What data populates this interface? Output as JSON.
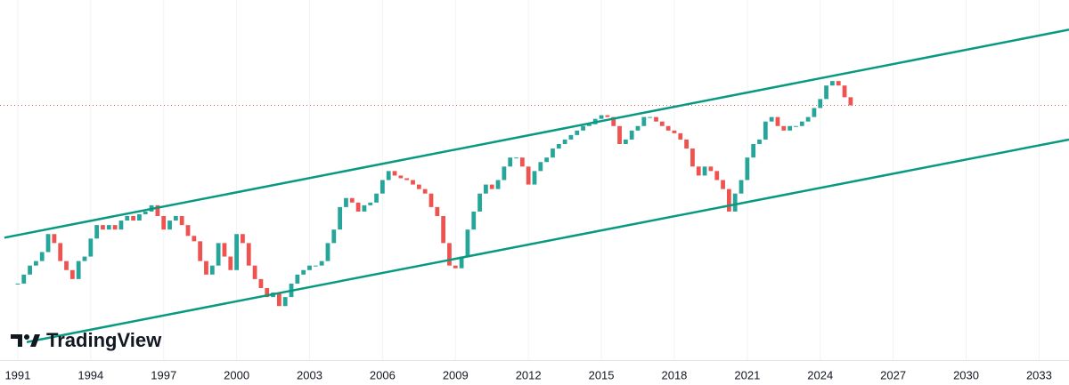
{
  "chart_data": {
    "type": "candlestick",
    "x": [
      1991,
      1991.25,
      1991.5,
      1991.75,
      1992,
      1992.25,
      1992.5,
      1992.75,
      1993,
      1993.25,
      1993.5,
      1993.75,
      1994,
      1994.25,
      1994.5,
      1994.75,
      1995,
      1995.25,
      1995.5,
      1995.75,
      1996,
      1996.25,
      1996.5,
      1996.75,
      1997,
      1997.25,
      1997.5,
      1997.75,
      1998,
      1998.25,
      1998.5,
      1998.75,
      1999,
      1999.25,
      1999.5,
      1999.75,
      2000,
      2000.25,
      2000.5,
      2000.75,
      2001,
      2001.25,
      2001.5,
      2001.75,
      2002,
      2002.25,
      2002.5,
      2002.75,
      2003,
      2003.25,
      2003.5,
      2003.75,
      2004,
      2004.25,
      2004.5,
      2004.75,
      2005,
      2005.25,
      2005.5,
      2005.75,
      2006,
      2006.25,
      2006.5,
      2006.75,
      2007,
      2007.25,
      2007.5,
      2007.75,
      2008,
      2008.25,
      2008.5,
      2008.75,
      2009,
      2009.25,
      2009.5,
      2009.75,
      2010,
      2010.25,
      2010.5,
      2010.75,
      2011,
      2011.25,
      2011.5,
      2011.75,
      2012,
      2012.25,
      2012.5,
      2012.75,
      2013,
      2013.25,
      2013.5,
      2013.75,
      2014,
      2014.25,
      2014.5,
      2014.75,
      2015,
      2015.25,
      2015.5,
      2015.75,
      2016,
      2016.25,
      2016.5,
      2016.75,
      2017,
      2017.25,
      2017.5,
      2017.75,
      2018,
      2018.25,
      2018.5,
      2018.75,
      2019,
      2019.25,
      2019.5,
      2019.75,
      2020,
      2020.25,
      2020.5,
      2020.75,
      2021,
      2021.25,
      2021.5,
      2021.75,
      2022,
      2022.25,
      2022.5,
      2022.75,
      2023,
      2023.25,
      2023.5,
      2023.75,
      2024,
      2024.25,
      2024.5,
      2024.75,
      2025,
      2025.25
    ],
    "series": [
      {
        "up_color": "#26a69a",
        "down_color": "#ef5350",
        "values": [
          85,
          95,
          105,
          110,
          120,
          140,
          130,
          110,
          100,
          90,
          110,
          115,
          135,
          150,
          145,
          150,
          145,
          155,
          160,
          155,
          162,
          165,
          172,
          160,
          145,
          155,
          160,
          150,
          138,
          132,
          110,
          95,
          105,
          130,
          115,
          100,
          140,
          130,
          105,
          90,
          80,
          70,
          75,
          60,
          70,
          85,
          95,
          100,
          105,
          105,
          110,
          130,
          145,
          170,
          180,
          175,
          165,
          172,
          175,
          185,
          200,
          210,
          205,
          202,
          200,
          195,
          190,
          185,
          170,
          160,
          130,
          105,
          102,
          115,
          145,
          165,
          185,
          195,
          190,
          200,
          215,
          225,
          225,
          215,
          195,
          210,
          220,
          225,
          235,
          240,
          245,
          250,
          255,
          260,
          262,
          268,
          272,
          270,
          260,
          240,
          245,
          255,
          260,
          270,
          270,
          265,
          260,
          255,
          252,
          245,
          235,
          215,
          205,
          215,
          210,
          200,
          190,
          165,
          185,
          200,
          225,
          240,
          245,
          265,
          270,
          260,
          255,
          260,
          260,
          265,
          270,
          280,
          290,
          305,
          310,
          305,
          292,
          283
        ]
      }
    ],
    "trendlines": [
      {
        "color": "#089981",
        "x": [
          1990.45,
          2034.23
        ],
        "y": [
          136,
          367
        ]
      },
      {
        "color": "#089981",
        "x": [
          1991.37,
          2034.23
        ],
        "y": [
          20,
          245
        ]
      }
    ],
    "last_price_line": {
      "value": 283,
      "color": "#ef5350"
    },
    "xlim": [
      1990.27,
      2034.23
    ],
    "ylim": [
      0,
      400
    ],
    "xticks": [
      1991,
      1994,
      1997,
      2000,
      2003,
      2006,
      2009,
      2012,
      2015,
      2018,
      2021,
      2024,
      2027,
      2030,
      2033
    ],
    "grid": true,
    "watermark": "TradingView"
  }
}
